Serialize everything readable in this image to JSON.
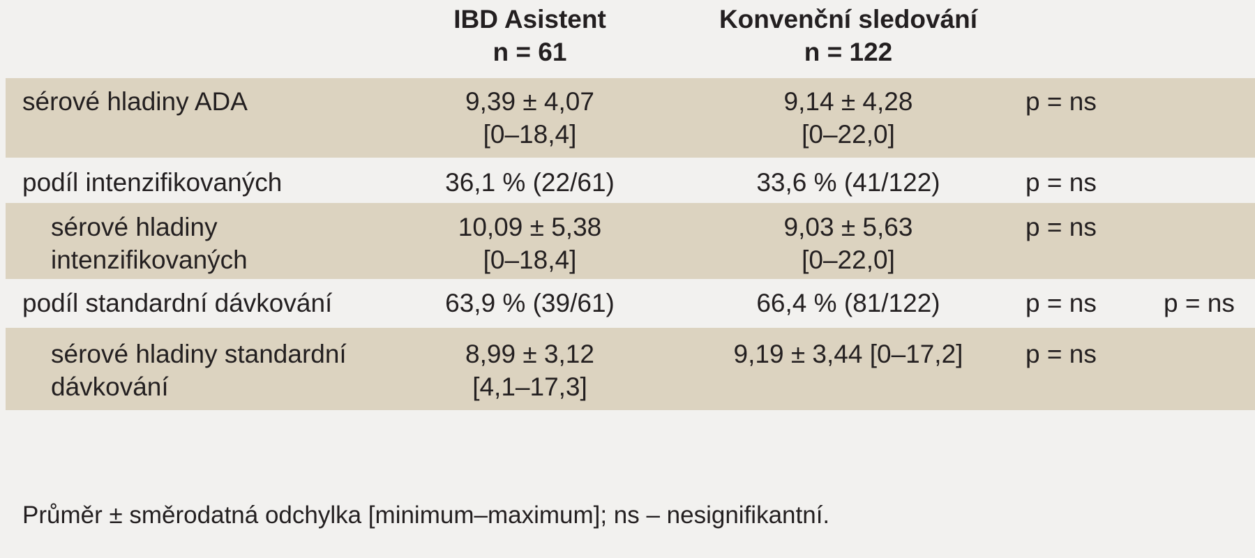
{
  "table": {
    "col_a_name": "IBD Asistent",
    "col_a_n": "n = 61",
    "col_b_name": "Konvenční sledování",
    "col_b_n": "n = 122",
    "rows": [
      {
        "label": "sérové hladiny ADA",
        "a_line1": "9,39 ± 4,07",
        "a_line2": "[0–18,4]",
        "b_line1": "9,14 ± 4,28",
        "b_line2": "[0–22,0]",
        "p": "p = ns"
      },
      {
        "label": "podíl intenzifikovaných",
        "a_line1": "36,1 % (22/61)",
        "b_line1": "33,6 % (41/122)",
        "p": "p = ns"
      },
      {
        "label_line1": "sérové hladiny",
        "label_line2": "intenzifikovaných",
        "a_line1": "10,09 ± 5,38",
        "a_line2": "[0–18,4]",
        "b_line1": "9,03 ± 5,63",
        "b_line2": "[0–22,0]",
        "p": "p = ns"
      },
      {
        "label": "podíl standardní dávkování",
        "a_line1": "63,9 % (39/61)",
        "b_line1": "66,4 % (81/122)",
        "p": "p = ns",
        "p2": "p = ns"
      },
      {
        "label_line1": "sérové hladiny standardní",
        "label_line2": "dávkování",
        "a_line1": "8,99 ± 3,12",
        "a_line2": "[4,1–17,3]",
        "b_line1": "9,19 ± 3,44 [0–17,2]",
        "p": "p = ns"
      }
    ],
    "footnote": "Průměr ± směrodatná odchylka [minimum–maximum]; ns – nesignifikantní."
  }
}
